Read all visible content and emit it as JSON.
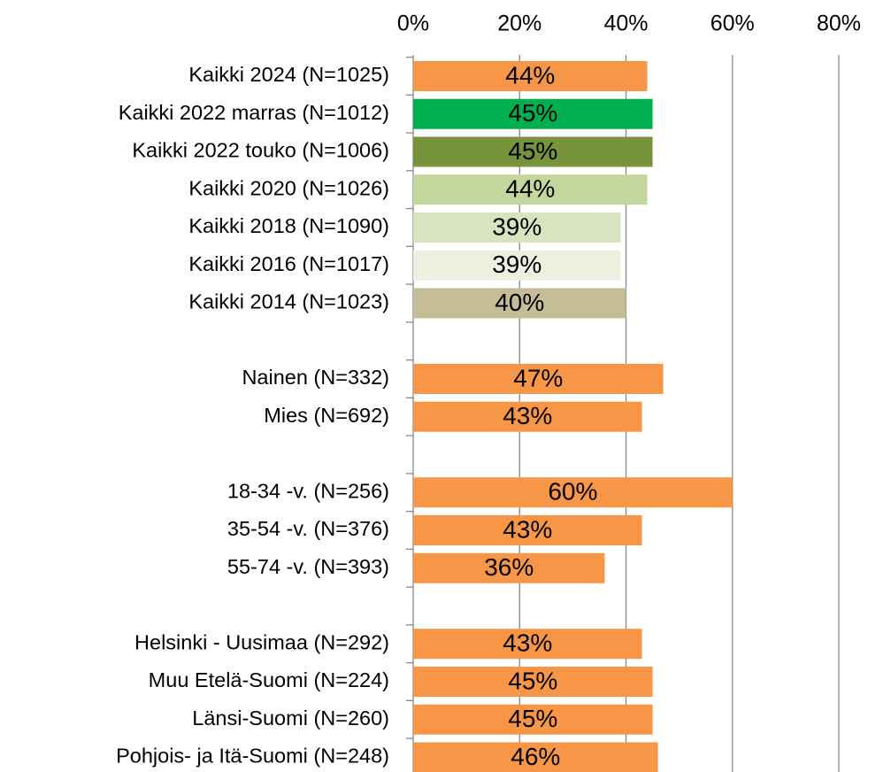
{
  "chart_data": {
    "type": "barh",
    "categories": [
      "Kaikki 2024 (N=1025)",
      "Kaikki 2022 marras (N=1012)",
      "Kaikki 2022 touko (N=1006)",
      "Kaikki 2020 (N=1026)",
      "Kaikki 2018 (N=1090)",
      "Kaikki 2016 (N=1017)",
      "Kaikki 2014 (N=1023)",
      null,
      "Nainen (N=332)",
      "Mies (N=692)",
      null,
      "18-34 -v. (N=256)",
      "35-54 -v. (N=376)",
      "55-74 -v. (N=393)",
      null,
      "Helsinki - Uusimaa (N=292)",
      "Muu Etelä-Suomi (N=224)",
      "Länsi-Suomi (N=260)",
      "Pohjois- ja Itä-Suomi (N=248)"
    ],
    "values": [
      44,
      45,
      45,
      44,
      39,
      39,
      40,
      null,
      47,
      43,
      null,
      60,
      43,
      36,
      null,
      43,
      45,
      45,
      46
    ],
    "value_labels": [
      "44%",
      "45%",
      "45%",
      "44%",
      "39%",
      "39%",
      "40%",
      null,
      "47%",
      "43%",
      null,
      "60%",
      "43%",
      "36%",
      null,
      "43%",
      "45%",
      "45%",
      "46%"
    ],
    "colors": [
      "#f79646",
      "#00b050",
      "#77933c",
      "#c3d69b",
      "#d7e4bd",
      "#ebf1de",
      "#c4bd97",
      null,
      "#f79646",
      "#f79646",
      null,
      "#f79646",
      "#f79646",
      "#f79646",
      null,
      "#f79646",
      "#f79646",
      "#f79646",
      "#f79646"
    ],
    "xlim": [
      0,
      80
    ],
    "xticks": [
      {
        "value": 0,
        "label": "0%"
      },
      {
        "value": 20,
        "label": "20%"
      },
      {
        "value": 40,
        "label": "40%"
      },
      {
        "value": 60,
        "label": "60%"
      },
      {
        "value": 80,
        "label": "80%"
      }
    ],
    "grid": true
  }
}
